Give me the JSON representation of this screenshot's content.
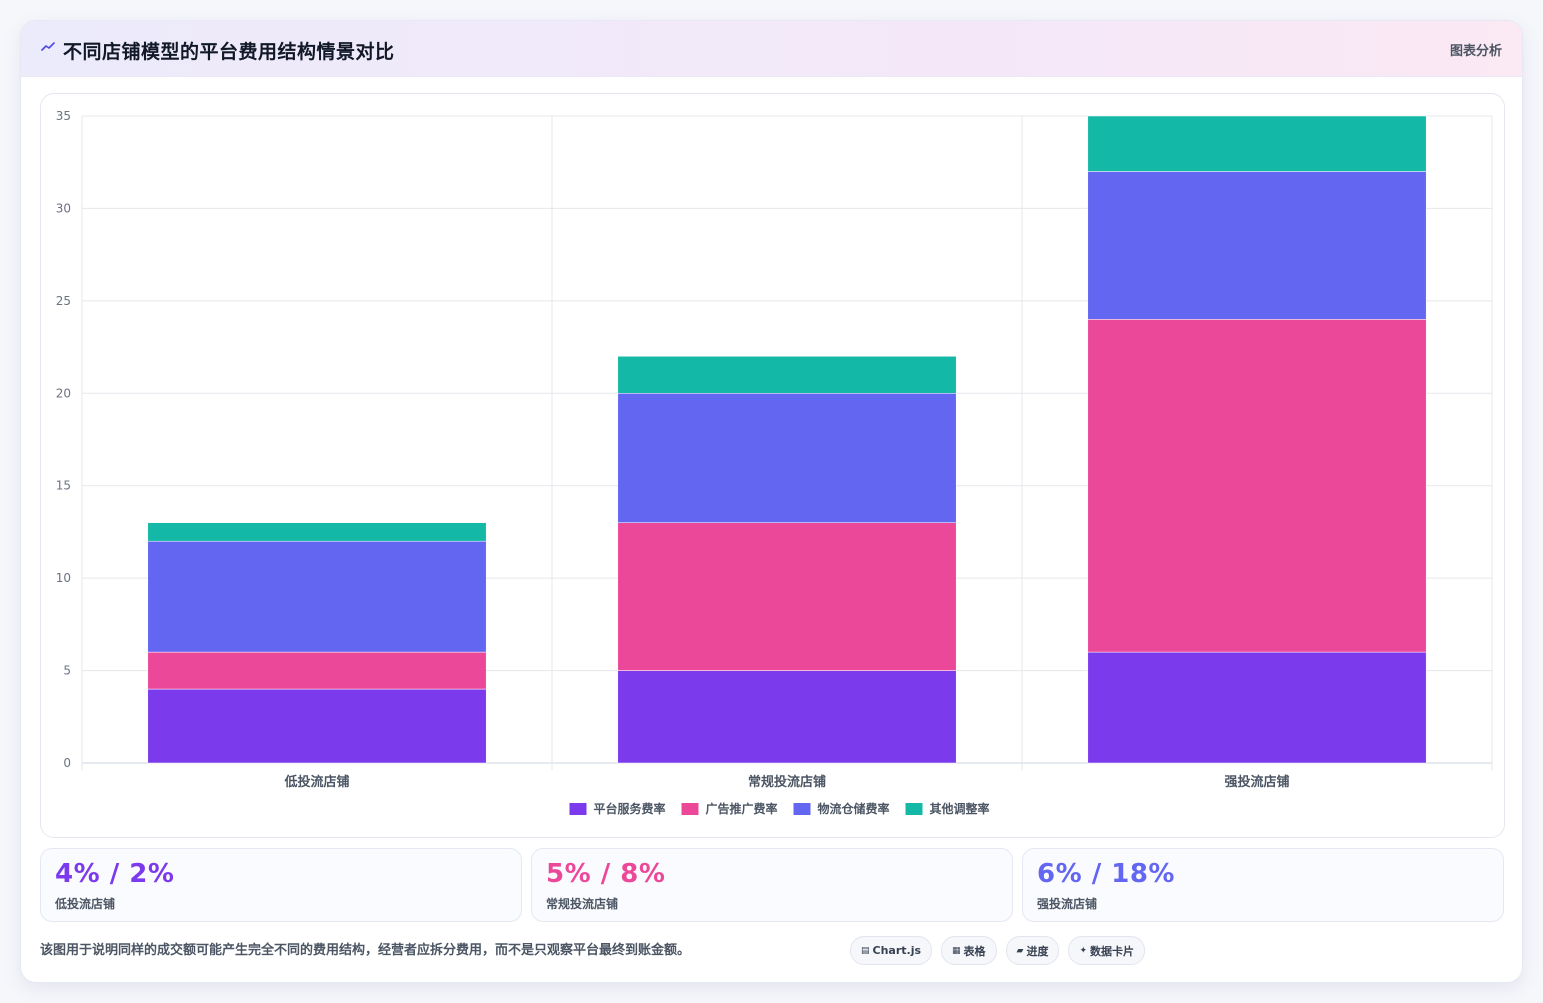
{
  "header": {
    "title": "不同店铺模型的平台费用结构情景对比",
    "right_label": "图表分析"
  },
  "chart_data": {
    "type": "bar",
    "stacked": true,
    "categories": [
      "低投流店铺",
      "常规投流店铺",
      "强投流店铺"
    ],
    "series": [
      {
        "name": "平台服务费率",
        "color": "#7c3aed",
        "values": [
          4,
          5,
          6
        ]
      },
      {
        "name": "广告推广费率",
        "color": "#ec4899",
        "values": [
          2,
          8,
          18
        ]
      },
      {
        "name": "物流仓储费率",
        "color": "#6366f1",
        "values": [
          6,
          7,
          8
        ]
      },
      {
        "name": "其他调整率",
        "color": "#14b8a6",
        "values": [
          1,
          2,
          3
        ]
      }
    ],
    "ylim": [
      0,
      35
    ],
    "yticks": [
      0,
      5,
      10,
      15,
      20,
      25,
      30,
      35
    ],
    "grid": true,
    "legend_position": "bottom"
  },
  "stats": [
    {
      "value": "4% / 2%",
      "label": "低投流店铺",
      "color": "#7c3aed"
    },
    {
      "value": "5% / 8%",
      "label": "常规投流店铺",
      "color": "#ec4899"
    },
    {
      "value": "6% / 18%",
      "label": "强投流店铺",
      "color": "#6366f1"
    }
  ],
  "note": "该图用于说明同样的成交额可能产生完全不同的费用结构，经营者应拆分费用，而不是只观察平台最终到账金额。",
  "chips": [
    {
      "icon": "▤",
      "icon_name": "chart-icon",
      "label": "Chart.js"
    },
    {
      "icon": "▦",
      "icon_name": "table-icon",
      "label": "表格"
    },
    {
      "icon": "▰",
      "icon_name": "progress-icon",
      "label": "进度"
    },
    {
      "icon": "✦",
      "icon_name": "sparkle-icon",
      "label": "数据卡片"
    }
  ]
}
